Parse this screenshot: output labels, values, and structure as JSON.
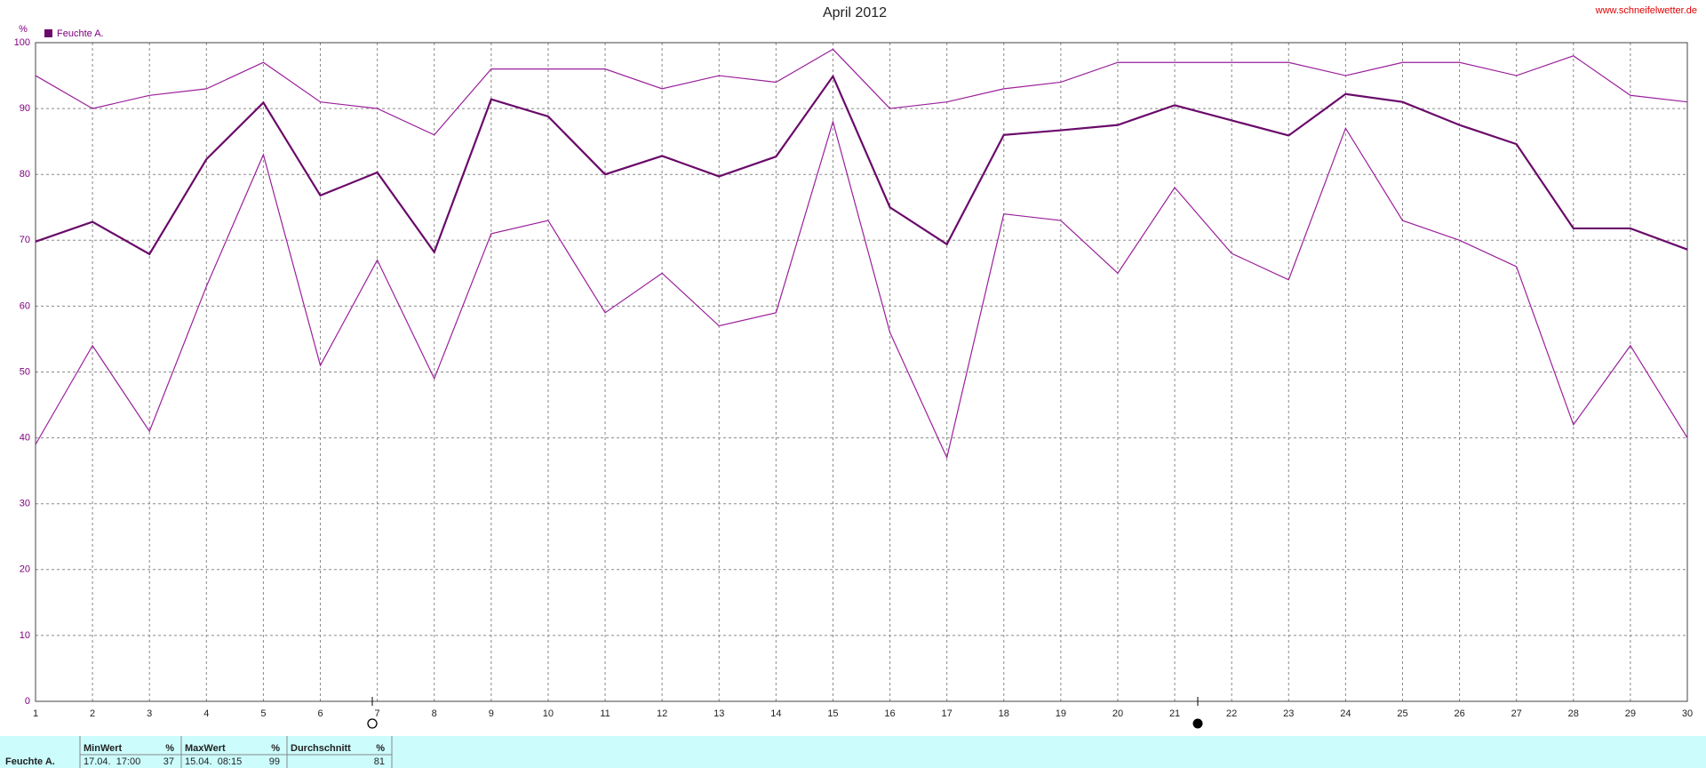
{
  "chart_data": {
    "type": "line",
    "title": "April 2012",
    "y_label": "%",
    "source": "www.schneifelwetter.de",
    "x": [
      1,
      2,
      3,
      4,
      5,
      6,
      7,
      8,
      9,
      10,
      11,
      12,
      13,
      14,
      15,
      16,
      17,
      18,
      19,
      20,
      21,
      22,
      23,
      24,
      25,
      26,
      27,
      28,
      29,
      30
    ],
    "xlim": [
      1,
      30
    ],
    "xticks": [
      1,
      2,
      3,
      4,
      5,
      6,
      7,
      8,
      9,
      10,
      11,
      12,
      13,
      14,
      15,
      16,
      17,
      18,
      19,
      20,
      21,
      22,
      23,
      24,
      25,
      26,
      27,
      28,
      29,
      30
    ],
    "ylim": [
      0,
      100
    ],
    "yticks": [
      0,
      10,
      20,
      30,
      40,
      50,
      60,
      70,
      80,
      90,
      100
    ],
    "grid": true,
    "legend": "upper left",
    "series": [
      {
        "color": "#9b209b",
        "values": [
          95,
          90,
          92,
          93,
          97,
          91,
          90,
          86,
          96,
          96,
          96,
          93,
          95,
          94,
          99,
          90,
          91,
          93,
          94,
          97,
          97,
          97,
          97,
          95,
          97,
          97,
          95,
          98,
          92,
          91
        ]
      },
      {
        "name": "Feuchte A.",
        "color": "#6a0a6a",
        "values": [
          69.8,
          72.8,
          67.9,
          82.3,
          90.9,
          76.8,
          80.3,
          68.2,
          91.4,
          88.8,
          80,
          82.8,
          79.7,
          82.7,
          94.9,
          75,
          69.4,
          86,
          86.7,
          87.5,
          90.5,
          88.2,
          85.9,
          92.2,
          91,
          87.5,
          84.6,
          71.8,
          71.8,
          68.6
        ]
      },
      {
        "color": "#9b209b",
        "values": [
          39,
          54,
          41,
          63,
          83,
          51,
          67,
          49,
          71,
          73,
          59,
          65,
          57,
          59,
          88,
          56,
          37,
          74,
          73,
          65,
          78,
          68,
          64,
          87,
          73,
          70,
          66,
          42,
          54,
          40
        ]
      }
    ]
  },
  "table": {
    "label": "Feuchte A.",
    "columns": [
      {
        "name": "MinWert",
        "unit": "%",
        "when": "17.04.  17:00",
        "value": 37
      },
      {
        "name": "MaxWert",
        "unit": "%",
        "when": "15.04.  08:15",
        "value": 99
      },
      {
        "name": "Durchschnitt",
        "unit": "%",
        "value": 81
      }
    ]
  }
}
